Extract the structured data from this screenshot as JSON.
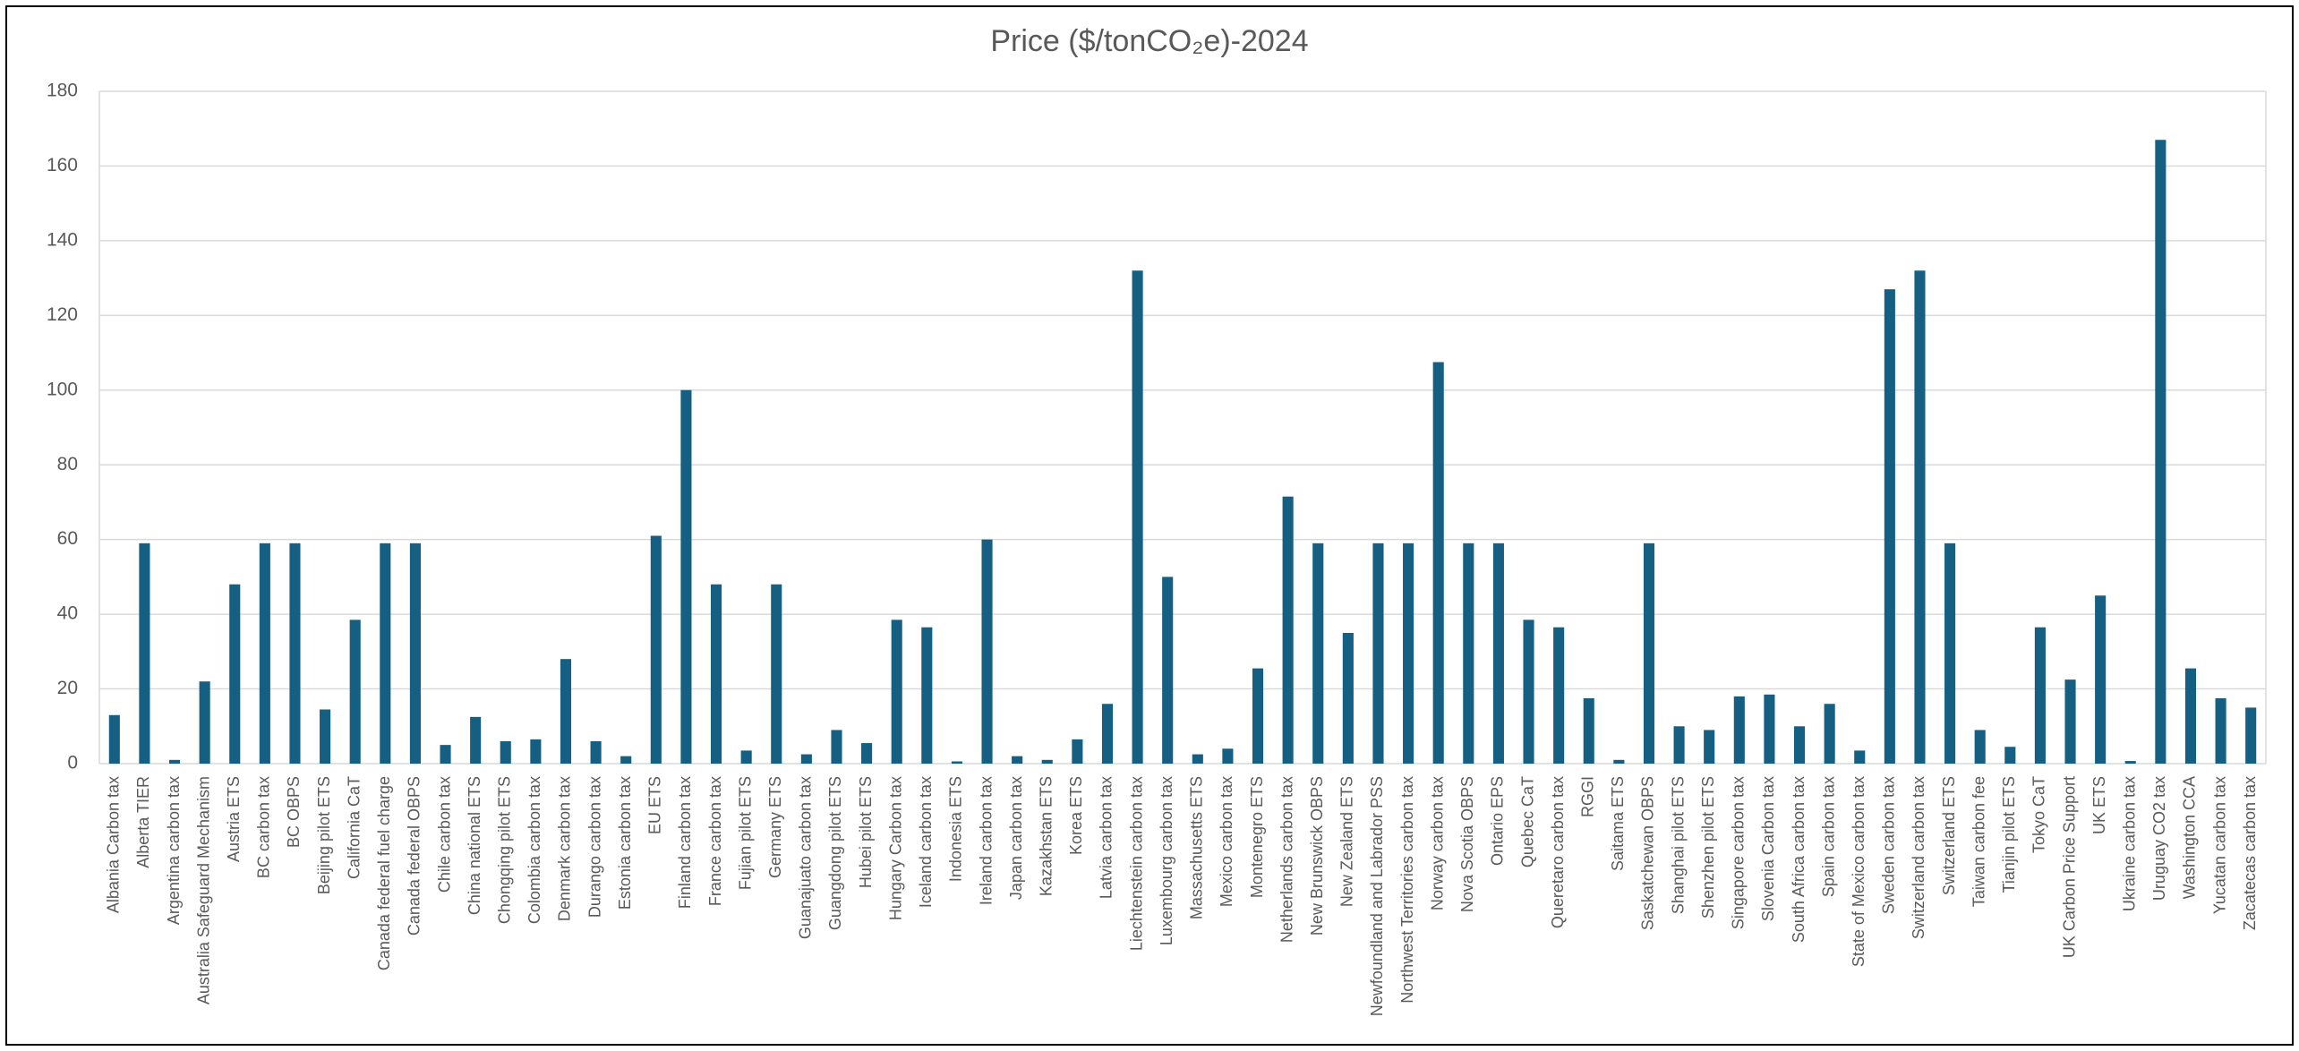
{
  "chart_data": {
    "type": "bar",
    "title": "Price ($/tonCO₂e)-2024",
    "categories": [
      "Albania Carbon tax",
      "Alberta TIER",
      "Argentina carbon tax",
      "Australia Safeguard Mechanism",
      "Austria ETS",
      "BC carbon tax",
      "BC OBPS",
      "Beijing pilot ETS",
      "California CaT",
      "Canada federal fuel charge",
      "Canada federal OBPS",
      "Chile carbon tax",
      "China national ETS",
      "Chongqing pilot ETS",
      "Colombia carbon tax",
      "Denmark carbon tax",
      "Durango carbon tax",
      "Estonia carbon tax",
      "EU ETS",
      "Finland carbon tax",
      "France carbon tax",
      "Fujian pilot ETS",
      "Germany ETS",
      "Guanajuato carbon tax",
      "Guangdong pilot ETS",
      "Hubei pilot ETS",
      "Hungary Carbon tax",
      "Iceland carbon tax",
      "Indonesia ETS",
      "Ireland carbon tax",
      "Japan carbon tax",
      "Kazakhstan ETS",
      "Korea ETS",
      "Latvia carbon tax",
      "Liechtenstein carbon tax",
      "Luxembourg carbon tax",
      "Massachusetts ETS",
      "Mexico carbon tax",
      "Montenegro ETS",
      "Netherlands carbon tax",
      "New Brunswick OBPS",
      "New Zealand ETS",
      "Newfoundland and Labrador PSS",
      "Northwest Territories carbon tax",
      "Norway carbon tax",
      "Nova Scotia OBPS",
      "Ontario EPS",
      "Quebec CaT",
      "Queretaro carbon tax",
      "RGGI",
      "Saitama ETS",
      "Saskatchewan OBPS",
      "Shanghai pilot ETS",
      "Shenzhen pilot ETS",
      "Singapore carbon tax",
      "Slovenia Carbon tax",
      "South Africa carbon tax",
      "Spain carbon tax",
      "State of Mexico carbon tax",
      "Sweden carbon tax",
      "Switzerland carbon tax",
      "Switzerland ETS",
      "Taiwan carbon fee",
      "Tianjin pilot ETS",
      "Tokyo CaT",
      "UK Carbon Price Support",
      "UK ETS",
      "Ukraine carbon tax",
      "Uruguay CO2 tax",
      "Washington CCA",
      "Yucatan carbon tax",
      "Zacatecas carbon tax"
    ],
    "values": [
      13,
      59,
      1,
      22,
      48,
      59,
      59,
      14.5,
      38.5,
      59,
      59,
      5,
      12.5,
      6,
      6.5,
      28,
      6,
      2,
      61,
      100,
      48,
      3.5,
      48,
      2.5,
      9,
      5.5,
      38.5,
      36.5,
      0.6,
      60,
      2,
      1,
      6.5,
      16,
      132,
      50,
      2.5,
      4,
      25.5,
      71.5,
      59,
      35,
      59,
      59,
      107.5,
      59,
      59,
      38.5,
      36.5,
      17.5,
      1,
      59,
      10,
      9,
      18,
      18.5,
      10,
      16,
      3.5,
      127,
      132,
      59,
      9,
      4.5,
      36.5,
      22.5,
      45,
      0.7,
      167,
      25.5,
      17.5,
      15
    ],
    "color": "#156082",
    "ylim": [
      0,
      180
    ],
    "yticks": [
      0,
      20,
      40,
      60,
      80,
      100,
      120,
      140,
      160,
      180
    ],
    "grid": true
  }
}
